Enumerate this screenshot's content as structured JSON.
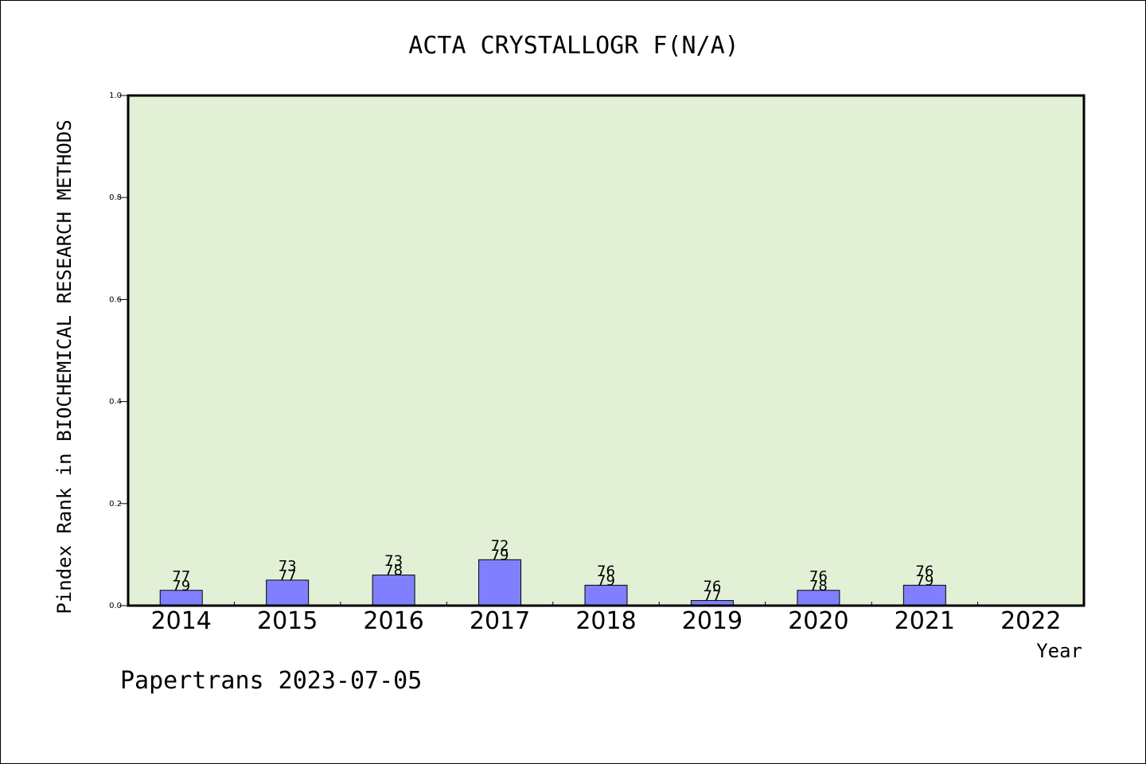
{
  "chart_data": {
    "type": "bar",
    "title": "ACTA CRYSTALLOGR F(N/A)",
    "xlabel": "Year",
    "ylabel": "Pindex Rank in BIOCHEMICAL RESEARCH METHODS",
    "categories": [
      "2014",
      "2015",
      "2016",
      "2017",
      "2018",
      "2019",
      "2020",
      "2021",
      "2022"
    ],
    "values": [
      0.03,
      0.05,
      0.06,
      0.09,
      0.04,
      0.01,
      0.03,
      0.04,
      null
    ],
    "bar_labels": [
      [
        "77",
        "79"
      ],
      [
        "73",
        "77"
      ],
      [
        "73",
        "78"
      ],
      [
        "72",
        "79"
      ],
      [
        "76",
        "79"
      ],
      [
        "76",
        "77"
      ],
      [
        "76",
        "78"
      ],
      [
        "76",
        "79"
      ],
      []
    ],
    "ylim": [
      0.0,
      1.0
    ],
    "yticks": [
      "0.0",
      "0.2",
      "0.4",
      "0.6",
      "0.8",
      "1.0"
    ],
    "grid": false,
    "colors": {
      "plot_background": "#e2f0d6",
      "bar_fill": "#8080ff",
      "bar_stroke": "#000000"
    }
  },
  "footer": "Papertrans 2023-07-05"
}
